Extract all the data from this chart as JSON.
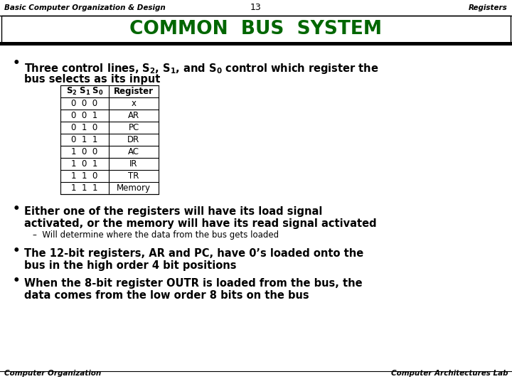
{
  "header_left": "Basic Computer Organization & Design",
  "header_center": "13",
  "header_right": "Registers",
  "title": "COMMON  BUS  SYSTEM",
  "title_color": "#006600",
  "bg_color": "#ffffff",
  "footer_left": "Computer Organization",
  "footer_right": "Computer Architectures Lab",
  "table_headers": [
    "S₂ S₁ S₀",
    "Register"
  ],
  "table_rows": [
    [
      "0  0  0",
      "x"
    ],
    [
      "0  0  1",
      "AR"
    ],
    [
      "0  1  0",
      "PC"
    ],
    [
      "0  1  1",
      "DR"
    ],
    [
      "1  0  0",
      "AC"
    ],
    [
      "1  0  1",
      "IR"
    ],
    [
      "1  1  0",
      "TR"
    ],
    [
      "1  1  1",
      "Memory"
    ]
  ],
  "bullet2_line1": "Either one of the registers will have its load signal",
  "bullet2_line2": "activated, or the memory will have its read signal activated",
  "sub_bullet": "–  Will determine where the data from the bus gets loaded",
  "bullet3_line1": "The 12-bit registers, AR and PC, have 0’s loaded onto the",
  "bullet3_line2": "bus in the high order 4 bit positions",
  "bullet4_line1": "When the 8-bit register OUTR is loaded from the bus, the",
  "bullet4_line2": "data comes from the low order 8 bits on the bus"
}
